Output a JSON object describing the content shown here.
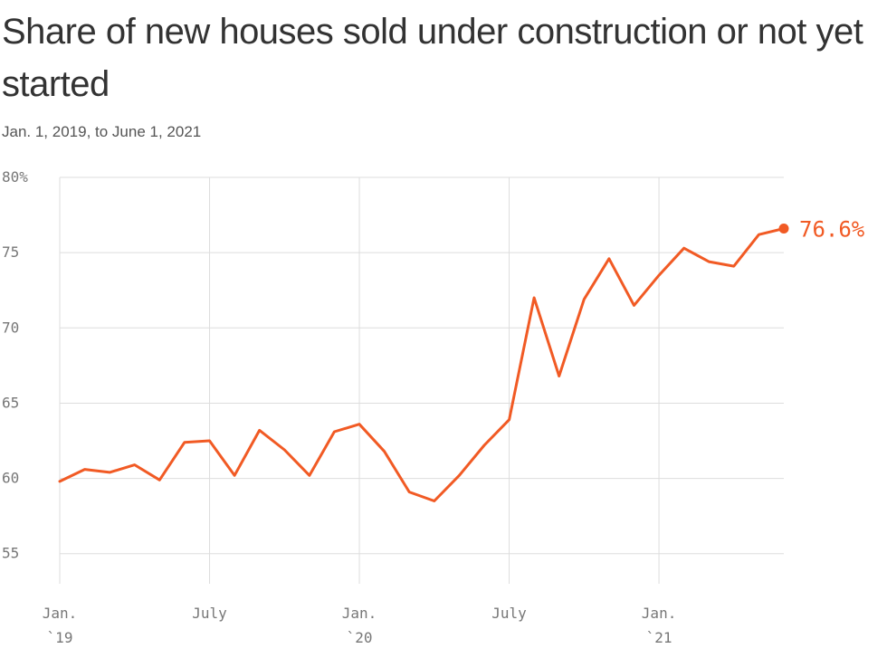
{
  "chart_data": {
    "type": "line",
    "title": "Share of new houses sold under construction or not yet started",
    "subtitle": "Jan. 1, 2019, to June 1, 2021",
    "xlabel": "",
    "ylabel": "",
    "ylim": [
      53,
      80
    ],
    "yticks": [
      55,
      60,
      65,
      70,
      75,
      80
    ],
    "ytick_labels": [
      "55",
      "60",
      "65",
      "70",
      "75",
      "80%"
    ],
    "x_ticks": [
      {
        "date": "2019-01",
        "line1": "Jan.",
        "line2": "`19"
      },
      {
        "date": "2019-07",
        "line1": "July",
        "line2": ""
      },
      {
        "date": "2020-01",
        "line1": "Jan.",
        "line2": "`20"
      },
      {
        "date": "2020-07",
        "line1": "July",
        "line2": ""
      },
      {
        "date": "2021-01",
        "line1": "Jan.",
        "line2": "`21"
      }
    ],
    "x": [
      "2019-01",
      "2019-02",
      "2019-03",
      "2019-04",
      "2019-05",
      "2019-06",
      "2019-07",
      "2019-08",
      "2019-09",
      "2019-10",
      "2019-11",
      "2019-12",
      "2020-01",
      "2020-02",
      "2020-03",
      "2020-04",
      "2020-05",
      "2020-06",
      "2020-07",
      "2020-08",
      "2020-09",
      "2020-10",
      "2020-11",
      "2020-12",
      "2021-01",
      "2021-02",
      "2021-03",
      "2021-04",
      "2021-05",
      "2021-06"
    ],
    "series": [
      {
        "values": [
          59.8,
          60.6,
          60.4,
          60.9,
          59.9,
          62.4,
          62.5,
          60.2,
          63.2,
          61.9,
          60.2,
          63.1,
          63.6,
          61.8,
          59.1,
          58.5,
          60.2,
          62.2,
          63.9,
          72.0,
          66.8,
          71.9,
          74.6,
          71.5,
          73.5,
          75.3,
          74.4,
          74.1,
          76.2,
          76.6
        ],
        "color": "#f15a24"
      }
    ],
    "end_label": "76.6%",
    "grid": true,
    "grid_color": "#dddddd"
  }
}
